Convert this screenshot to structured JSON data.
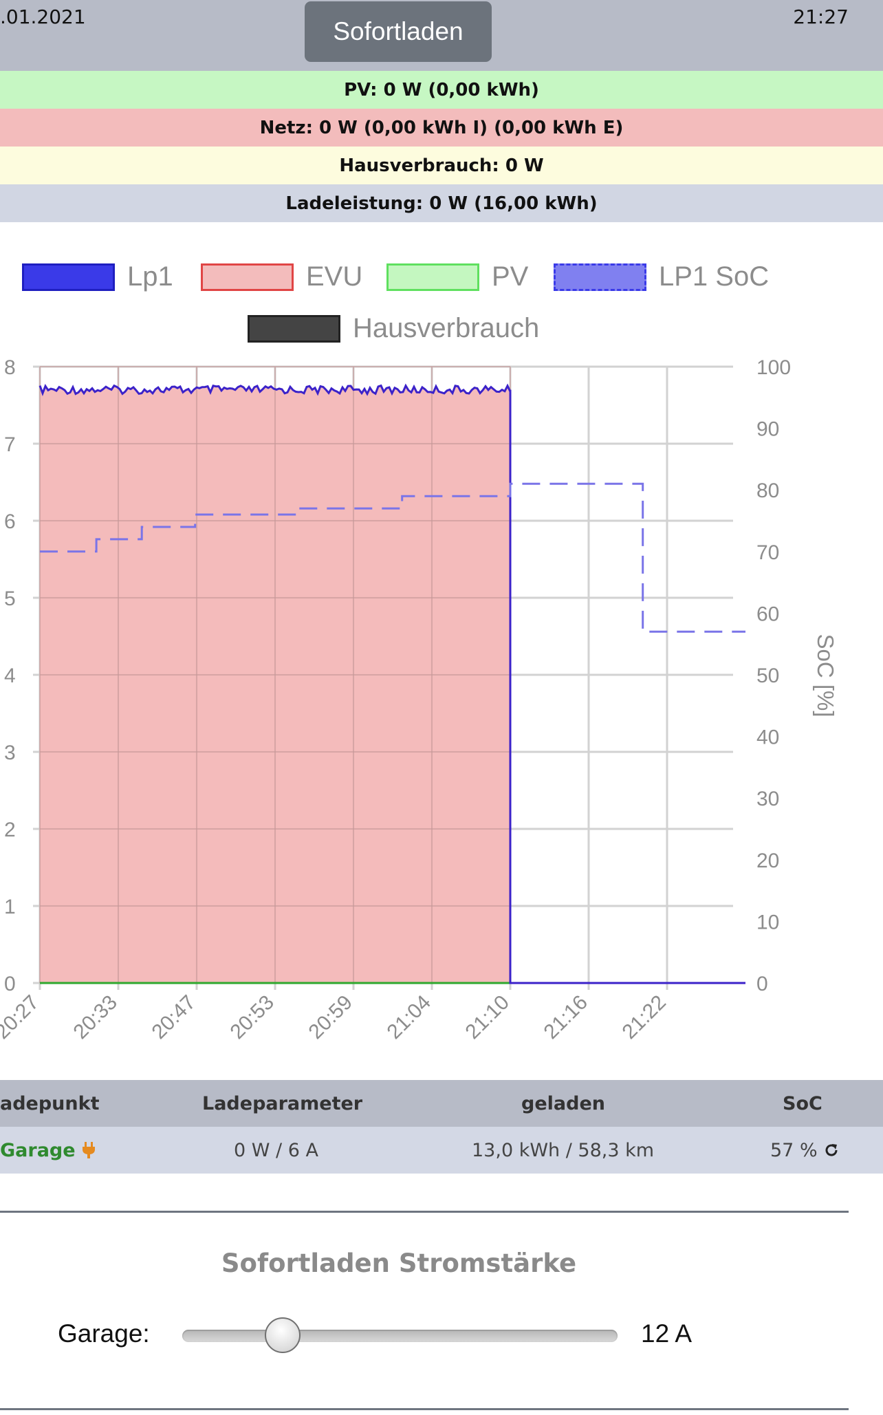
{
  "header": {
    "date": ".01.2021",
    "time": "21:27",
    "mode_button": "Sofortladen"
  },
  "status_bars": {
    "pv": "PV: 0 W (0,00 kWh)",
    "netz": "Netz: 0 W (0,00 kWh I) (0,00 kWh E)",
    "hausverbrauch": "Hausverbrauch: 0 W",
    "ladeleistung": "Ladeleistung: 0 W (16,00 kWh)"
  },
  "colors": {
    "pv_bg": "#c6f7c3",
    "netz_bg": "#f3bcbc",
    "haus_bg": "#fdfcde",
    "lade_bg": "#d1d6e3",
    "lp1": "#3b22c9",
    "evu_fill": "#f3b7b7",
    "soc": "#7a74e8",
    "pv_line": "#2ea82e"
  },
  "legend": [
    {
      "name": "Lp1",
      "fill": "#3a3ae8",
      "border": "#1f1fc0",
      "dashed": false
    },
    {
      "name": "EVU",
      "fill": "#f3bcbc",
      "border": "#e04545",
      "dashed": false
    },
    {
      "name": "PV",
      "fill": "#c4f7c0",
      "border": "#5fe05f",
      "dashed": false
    },
    {
      "name": "LP1 SoC",
      "fill": "#8080f0",
      "border": "#3a3ae8",
      "dashed": true
    },
    {
      "name": "Hausverbrauch",
      "fill": "#444444",
      "border": "#222222",
      "dashed": false
    }
  ],
  "chart_data": {
    "type": "area",
    "x_ticks": [
      "20:27",
      "20:33",
      "20:47",
      "20:53",
      "20:59",
      "21:04",
      "21:10",
      "21:16",
      "21:22"
    ],
    "y_left": {
      "ticks": [
        "0",
        "1",
        "2",
        "3",
        "4",
        "5",
        "6",
        "7",
        "8"
      ],
      "range": [
        0,
        8
      ]
    },
    "y_right": {
      "label": "SoC [%]",
      "ticks": [
        "0",
        "10",
        "20",
        "30",
        "40",
        "50",
        "60",
        "70",
        "80",
        "90",
        "100"
      ],
      "range": [
        0,
        100
      ]
    },
    "series": [
      {
        "name": "Lp1",
        "x_index": [
          0,
          6,
          6.0,
          9
        ],
        "values": [
          7.7,
          7.7,
          0,
          0
        ]
      },
      {
        "name": "EVU",
        "x_index": [
          0,
          6,
          6.0,
          9
        ],
        "values": [
          7.7,
          7.7,
          0,
          0
        ]
      },
      {
        "name": "PV",
        "x_index": [
          0,
          9
        ],
        "values": [
          0,
          0
        ]
      },
      {
        "name": "LP1 SoC",
        "x_index": [
          0,
          0.72,
          0.72,
          1.3,
          1.3,
          1.98,
          1.98,
          3.3,
          3.3,
          4.62,
          4.62,
          6.0,
          6.0,
          7.69,
          7.69,
          9
        ],
        "values": [
          70,
          70,
          72,
          72,
          74,
          74,
          76,
          76,
          77,
          77,
          79,
          79,
          81,
          81,
          57,
          57
        ]
      },
      {
        "name": "Hausverbrauch",
        "x_index": [],
        "values": []
      }
    ]
  },
  "table": {
    "headers": [
      "adepunkt",
      "Ladeparameter",
      "geladen",
      "SoC"
    ],
    "row": {
      "name": "Garage",
      "params": "0 W / 6 A",
      "charged": "13,0 kWh / 58,3 km",
      "soc": "57 %"
    }
  },
  "slider": {
    "title": "Sofortladen Stromstärke",
    "label": "Garage:",
    "value_text": "12 A",
    "value_amps": 12,
    "min_amps": 6,
    "max_amps": 32
  }
}
